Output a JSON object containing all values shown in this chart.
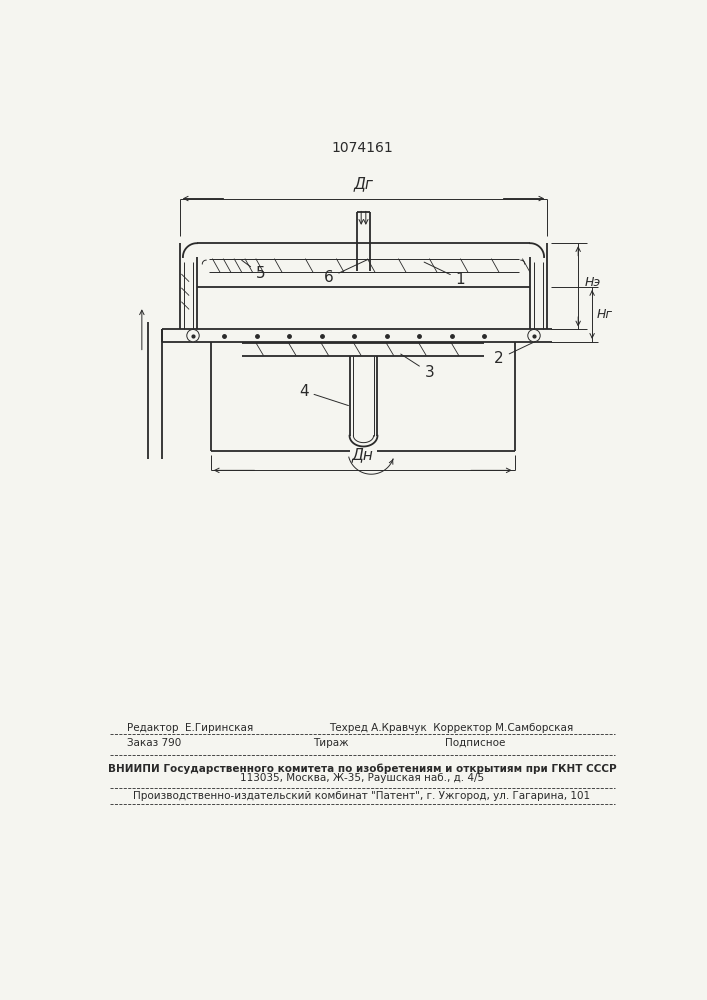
{
  "title": "1074161",
  "bg_color": "#f5f5f0",
  "line_color": "#2a2a2a",
  "label_1": "1",
  "label_2": "2",
  "label_3": "3",
  "label_4": "4",
  "label_5": "5",
  "label_6": "6",
  "dim_Dg": "Дг",
  "dim_Dn": "Дн",
  "dim_He": "Нэ",
  "dim_Hg": "Нг",
  "footer_line1": "Редактор  Е.Гиринская",
  "footer_line1b": "Техред А.Кравчук  Корректор М.Самборская",
  "footer_line2a": "Заказ 790",
  "footer_line2b": "Тираж",
  "footer_line2c": "Подписное",
  "footer_line3": "ВНИИПИ Государственного комитета по изобретениям и открытиям при ГКНТ СССР",
  "footer_line4": "113035, Москва, Ж-35, Раушская наб., д. 4/5",
  "footer_line5": "Производственно-издательский комбинат \"Патент\", г. Ужгород, ул. Гагарина, 101"
}
